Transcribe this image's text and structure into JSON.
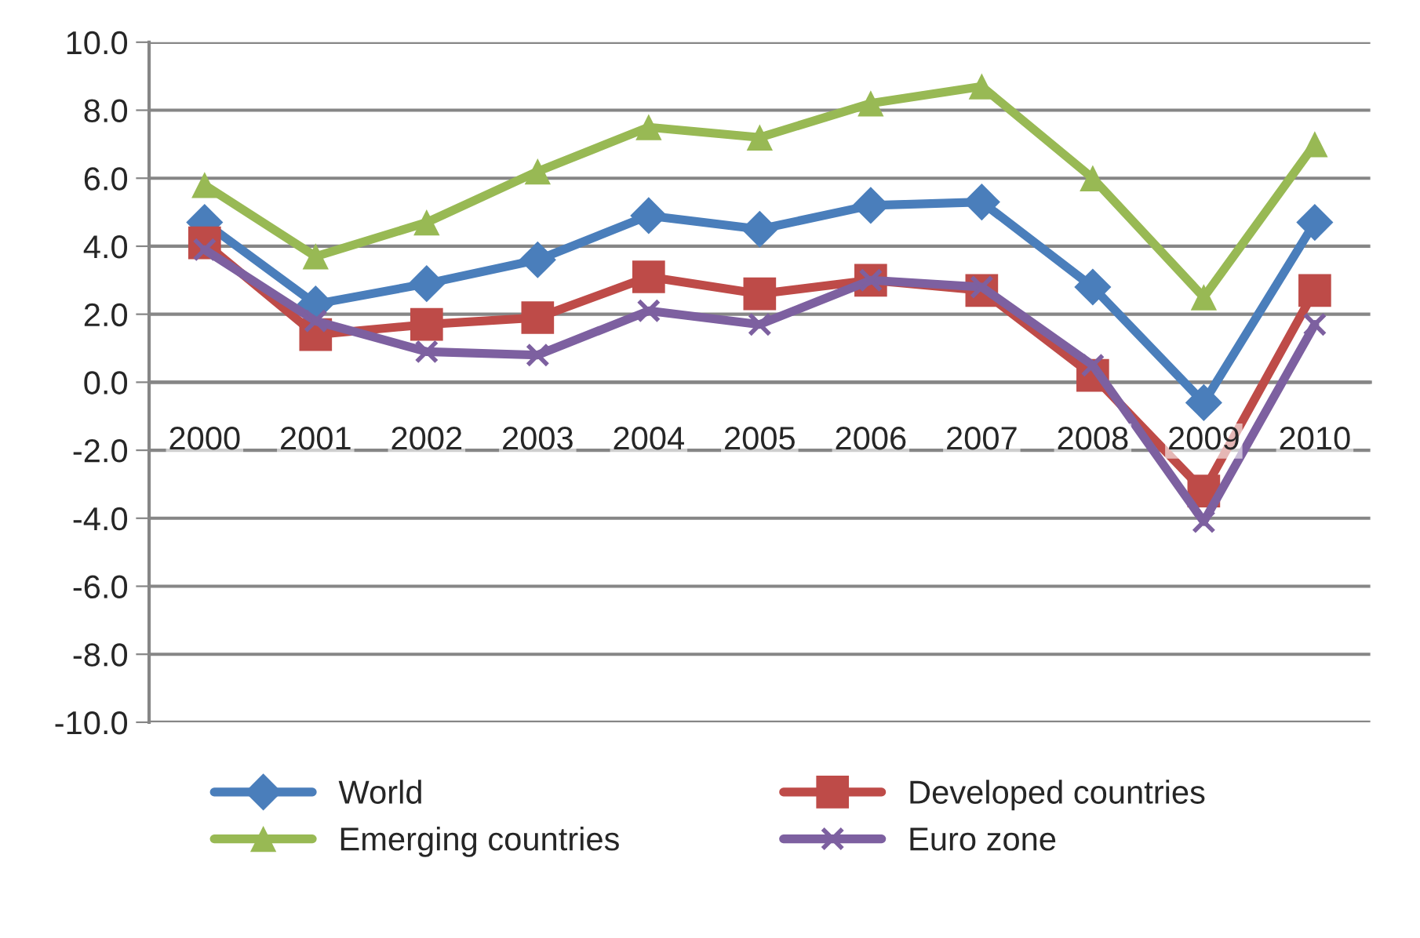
{
  "chart_data": {
    "type": "line",
    "categories": [
      "2000",
      "2001",
      "2002",
      "2003",
      "2004",
      "2005",
      "2006",
      "2007",
      "2008",
      "2009",
      "2010"
    ],
    "series": [
      {
        "name": "World",
        "color": "#4a7ebb",
        "marker": "diamond",
        "values": [
          4.7,
          2.3,
          2.9,
          3.6,
          4.9,
          4.5,
          5.2,
          5.3,
          2.8,
          -0.6,
          4.7
        ]
      },
      {
        "name": "Developed countries",
        "color": "#be4b48",
        "marker": "square",
        "values": [
          4.1,
          1.4,
          1.7,
          1.9,
          3.1,
          2.6,
          3.0,
          2.7,
          0.2,
          -3.2,
          2.7
        ]
      },
      {
        "name": "Emerging countries",
        "color": "#98b954",
        "marker": "triangle",
        "values": [
          5.8,
          3.7,
          4.7,
          6.2,
          7.5,
          7.2,
          8.2,
          8.7,
          6.0,
          2.5,
          7.0
        ]
      },
      {
        "name": "Euro zone",
        "color": "#7d60a0",
        "marker": "cross",
        "values": [
          3.9,
          1.8,
          0.9,
          0.8,
          2.1,
          1.7,
          3.0,
          2.8,
          0.5,
          -4.1,
          1.7
        ]
      }
    ],
    "ylim": [
      -10,
      10
    ],
    "yticks": [
      {
        "value": -10,
        "label": "-10.0"
      },
      {
        "value": -8,
        "label": "-8.0"
      },
      {
        "value": -6,
        "label": "-6.0"
      },
      {
        "value": -4,
        "label": "-4.0"
      },
      {
        "value": -2,
        "label": "-2.0"
      },
      {
        "value": 0,
        "label": "0.0"
      },
      {
        "value": 2,
        "label": "2.0"
      },
      {
        "value": 4,
        "label": "4.0"
      },
      {
        "value": 6,
        "label": "6.0"
      },
      {
        "value": 8,
        "label": "8.0"
      },
      {
        "value": 10,
        "label": "10.0"
      }
    ],
    "grid": "y",
    "legend": "bottom",
    "line_style": "solid"
  }
}
